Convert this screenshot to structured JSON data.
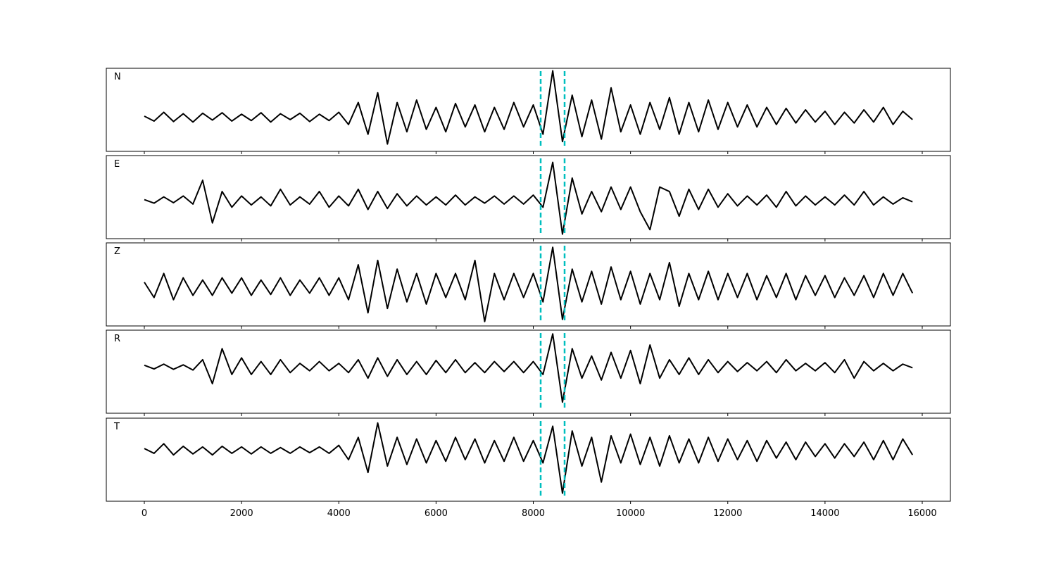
{
  "chart_data": {
    "type": "line",
    "x": [
      0,
      200,
      400,
      600,
      800,
      1000,
      1200,
      1400,
      1600,
      1800,
      2000,
      2200,
      2400,
      2600,
      2800,
      3000,
      3200,
      3400,
      3600,
      3800,
      4000,
      4200,
      4400,
      4600,
      4800,
      5000,
      5200,
      5400,
      5600,
      5800,
      6000,
      6200,
      6400,
      6600,
      6800,
      7000,
      7200,
      7400,
      7600,
      7800,
      8000,
      8200,
      8400,
      8600,
      8800,
      9000,
      9200,
      9400,
      9600,
      9800,
      10000,
      10200,
      10400,
      10600,
      10800,
      11000,
      11200,
      11400,
      11600,
      11800,
      12000,
      12200,
      12400,
      12600,
      12800,
      13000,
      13200,
      13400,
      13600,
      13800,
      14000,
      14200,
      14400,
      14600,
      14800,
      15000,
      15200,
      15400,
      15600,
      15800
    ],
    "xlim": [
      -782,
      16579
    ],
    "xticks": [
      0,
      2000,
      4000,
      6000,
      8000,
      10000,
      12000,
      14000,
      16000
    ],
    "vlines": [
      8152,
      8644
    ],
    "vline_color": "#00bfbf",
    "series": [
      {
        "name": "N",
        "color": "#000000",
        "ylim": [
          -0.7,
          1.0
        ],
        "values": [
          0.02,
          -0.08,
          0.1,
          -0.09,
          0.07,
          -0.1,
          0.08,
          -0.06,
          0.09,
          -0.08,
          0.06,
          -0.07,
          0.09,
          -0.1,
          0.07,
          -0.05,
          0.08,
          -0.09,
          0.06,
          -0.07,
          0.1,
          -0.15,
          0.3,
          -0.35,
          0.5,
          -0.55,
          0.3,
          -0.3,
          0.35,
          -0.25,
          0.2,
          -0.3,
          0.28,
          -0.2,
          0.25,
          -0.3,
          0.2,
          -0.25,
          0.3,
          -0.2,
          0.25,
          -0.35,
          0.95,
          -0.5,
          0.45,
          -0.4,
          0.35,
          -0.45,
          0.6,
          -0.3,
          0.25,
          -0.35,
          0.3,
          -0.25,
          0.4,
          -0.35,
          0.3,
          -0.3,
          0.35,
          -0.25,
          0.3,
          -0.2,
          0.25,
          -0.2,
          0.2,
          -0.15,
          0.18,
          -0.12,
          0.15,
          -0.1,
          0.12,
          -0.15,
          0.1,
          -0.12,
          0.15,
          -0.1,
          0.2,
          -0.15,
          0.12,
          -0.05
        ]
      },
      {
        "name": "E",
        "color": "#000000",
        "ylim": [
          -0.85,
          1.0
        ],
        "values": [
          0.02,
          -0.06,
          0.08,
          -0.05,
          0.1,
          -0.08,
          0.45,
          -0.5,
          0.2,
          -0.15,
          0.1,
          -0.1,
          0.08,
          -0.12,
          0.25,
          -0.1,
          0.08,
          -0.08,
          0.2,
          -0.15,
          0.1,
          -0.12,
          0.25,
          -0.2,
          0.2,
          -0.18,
          0.15,
          -0.12,
          0.1,
          -0.1,
          0.08,
          -0.1,
          0.12,
          -0.1,
          0.08,
          -0.06,
          0.1,
          -0.08,
          0.1,
          -0.08,
          0.12,
          -0.15,
          0.85,
          -0.75,
          0.5,
          -0.3,
          0.2,
          -0.25,
          0.3,
          -0.2,
          0.3,
          -0.25,
          -0.65,
          0.3,
          0.2,
          -0.35,
          0.25,
          -0.2,
          0.25,
          -0.15,
          0.15,
          -0.12,
          0.1,
          -0.1,
          0.12,
          -0.15,
          0.2,
          -0.12,
          0.1,
          -0.1,
          0.08,
          -0.1,
          0.12,
          -0.1,
          0.2,
          -0.1,
          0.08,
          -0.08,
          0.06,
          -0.03
        ]
      },
      {
        "name": "Z",
        "color": "#000000",
        "ylim": [
          -0.9,
          1.0
        ],
        "values": [
          0.1,
          -0.25,
          0.3,
          -0.3,
          0.2,
          -0.2,
          0.15,
          -0.2,
          0.2,
          -0.15,
          0.2,
          -0.2,
          0.15,
          -0.18,
          0.2,
          -0.2,
          0.15,
          -0.15,
          0.2,
          -0.2,
          0.2,
          -0.3,
          0.5,
          -0.6,
          0.6,
          -0.5,
          0.4,
          -0.35,
          0.3,
          -0.4,
          0.3,
          -0.25,
          0.3,
          -0.3,
          0.6,
          -0.8,
          0.3,
          -0.3,
          0.3,
          -0.25,
          0.3,
          -0.35,
          0.9,
          -0.75,
          0.4,
          -0.35,
          0.35,
          -0.4,
          0.45,
          -0.3,
          0.35,
          -0.4,
          0.3,
          -0.3,
          0.55,
          -0.45,
          0.3,
          -0.3,
          0.35,
          -0.3,
          0.3,
          -0.25,
          0.3,
          -0.3,
          0.25,
          -0.25,
          0.3,
          -0.3,
          0.25,
          -0.2,
          0.25,
          -0.25,
          0.2,
          -0.2,
          0.25,
          -0.25,
          0.3,
          -0.2,
          0.3,
          -0.15
        ]
      },
      {
        "name": "R",
        "color": "#000000",
        "ylim": [
          -1.25,
          1.0
        ],
        "values": [
          0.05,
          -0.05,
          0.08,
          -0.06,
          0.06,
          -0.08,
          0.2,
          -0.45,
          0.5,
          -0.2,
          0.25,
          -0.2,
          0.15,
          -0.2,
          0.2,
          -0.15,
          0.1,
          -0.1,
          0.15,
          -0.1,
          0.1,
          -0.15,
          0.2,
          -0.3,
          0.25,
          -0.25,
          0.2,
          -0.2,
          0.15,
          -0.2,
          0.18,
          -0.15,
          0.2,
          -0.15,
          0.12,
          -0.15,
          0.15,
          -0.12,
          0.15,
          -0.15,
          0.15,
          -0.2,
          0.9,
          -0.95,
          0.5,
          -0.3,
          0.3,
          -0.35,
          0.4,
          -0.3,
          0.45,
          -0.45,
          0.6,
          -0.3,
          0.2,
          -0.2,
          0.25,
          -0.2,
          0.2,
          -0.15,
          0.15,
          -0.12,
          0.12,
          -0.1,
          0.15,
          -0.15,
          0.2,
          -0.1,
          0.1,
          -0.1,
          0.12,
          -0.15,
          0.2,
          -0.3,
          0.15,
          -0.1,
          0.1,
          -0.1,
          0.08,
          -0.02
        ]
      },
      {
        "name": "T",
        "color": "#000000",
        "ylim": [
          -1.6,
          1.0
        ],
        "values": [
          0.05,
          -0.1,
          0.2,
          -0.15,
          0.12,
          -0.12,
          0.1,
          -0.15,
          0.12,
          -0.1,
          0.1,
          -0.12,
          0.1,
          -0.1,
          0.08,
          -0.1,
          0.1,
          -0.08,
          0.1,
          -0.1,
          0.15,
          -0.3,
          0.4,
          -0.7,
          0.85,
          -0.5,
          0.4,
          -0.45,
          0.35,
          -0.4,
          0.3,
          -0.35,
          0.4,
          -0.3,
          0.35,
          -0.4,
          0.3,
          -0.35,
          0.4,
          -0.35,
          0.3,
          -0.4,
          0.75,
          -1.35,
          0.6,
          -0.5,
          0.4,
          -1.0,
          0.45,
          -0.4,
          0.5,
          -0.45,
          0.4,
          -0.5,
          0.45,
          -0.4,
          0.35,
          -0.4,
          0.4,
          -0.35,
          0.35,
          -0.3,
          0.3,
          -0.35,
          0.3,
          -0.25,
          0.25,
          -0.3,
          0.25,
          -0.2,
          0.2,
          -0.25,
          0.2,
          -0.2,
          0.25,
          -0.3,
          0.3,
          -0.3,
          0.35,
          -0.15
        ]
      }
    ]
  }
}
